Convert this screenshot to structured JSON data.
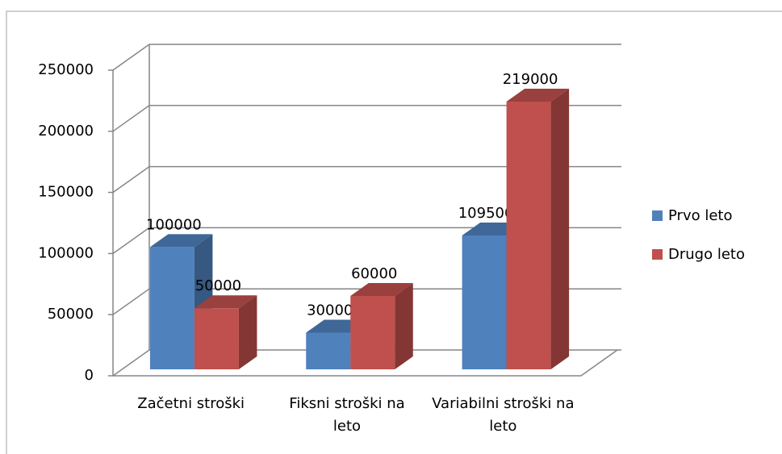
{
  "chart_data": {
    "type": "bar3d",
    "categories": [
      "Začetni stroški",
      "Fiksni stroški na leto",
      "Variabilni stroški na leto"
    ],
    "series": [
      {
        "name": "Prvo leto",
        "color": "#4f81bd",
        "values": [
          100000,
          30000,
          109500
        ]
      },
      {
        "name": "Drugo leto",
        "color": "#c0504d",
        "values": [
          50000,
          60000,
          219000
        ]
      }
    ],
    "ylim": [
      0,
      250000
    ],
    "yticks": [
      0,
      50000,
      100000,
      150000,
      200000,
      250000
    ],
    "grid": true,
    "legend": "right"
  }
}
